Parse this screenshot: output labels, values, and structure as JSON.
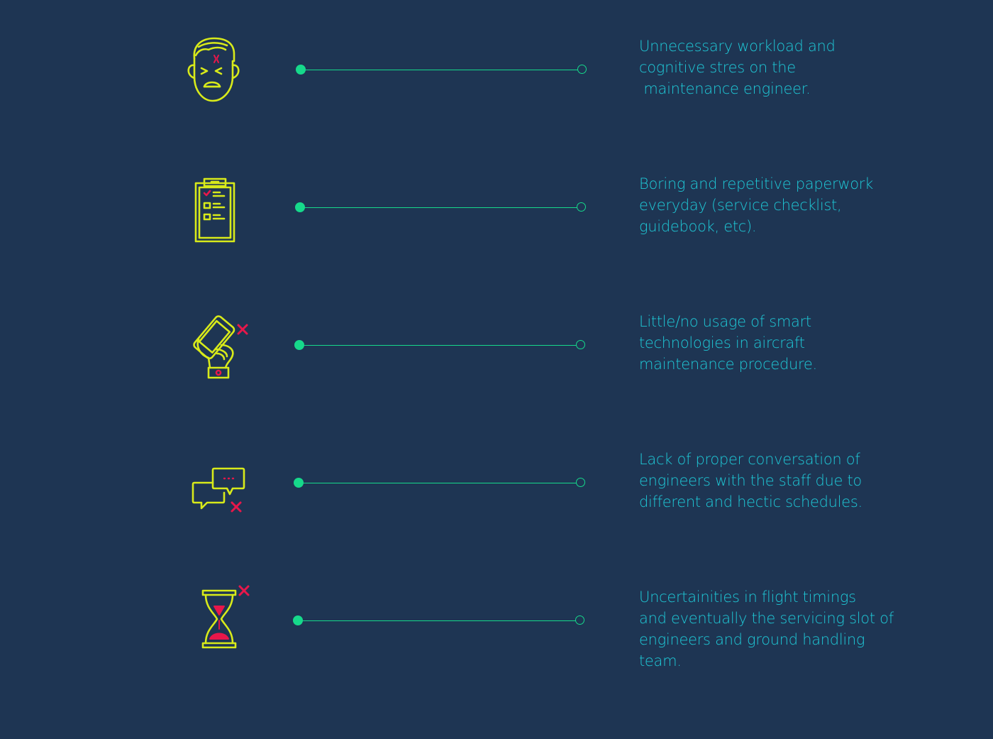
{
  "colors": {
    "background": "#1e3553",
    "icon_stroke": "#d8ea1a",
    "icon_accent": "#e8174a",
    "connector": "#16d98b",
    "text": "#1fc8d6"
  },
  "items": [
    {
      "icon": "frustrated-engineer-face-icon",
      "lines": [
        "Unnecessary workload and",
        "cognitive stres on the",
        " maintenance engineer."
      ]
    },
    {
      "icon": "clipboard-checklist-icon",
      "lines": [
        "Boring and repetitive paperwork",
        "everyday (service checklist,",
        "guidebook, etc)."
      ]
    },
    {
      "icon": "hand-phone-cross-icon",
      "lines": [
        "Little/no usage of smart",
        "technologies in aircraft",
        "maintenance procedure."
      ]
    },
    {
      "icon": "chat-bubbles-cross-icon",
      "lines": [
        "Lack of proper conversation of",
        "engineers with the staff due to",
        "different and hectic schedules."
      ]
    },
    {
      "icon": "hourglass-cross-icon",
      "lines": [
        "Uncertainities in flight timings",
        "and eventually the servicing slot of",
        "engineers and ground handling",
        "team."
      ]
    }
  ]
}
